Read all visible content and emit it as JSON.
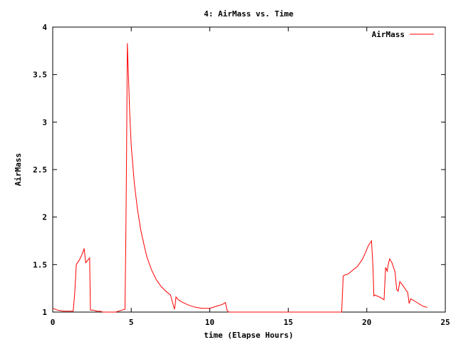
{
  "chart_data": {
    "type": "line",
    "title": "4: AirMass vs. Time",
    "xlabel": "time (Elapse Hours)",
    "ylabel": "AirMass",
    "xlim": [
      0,
      25
    ],
    "ylim": [
      1,
      4
    ],
    "xticks": [
      0,
      5,
      10,
      15,
      20,
      25
    ],
    "yticks": [
      1,
      1.5,
      2,
      2.5,
      3,
      3.5,
      4
    ],
    "xtick_labels": [
      "0",
      "5",
      "10",
      "15",
      "20",
      "25"
    ],
    "ytick_labels": [
      "1",
      "1.5",
      "2",
      "2.5",
      "3",
      "3.5",
      "4"
    ],
    "grid": false,
    "legend_position": "top-right",
    "series": [
      {
        "name": "AirMass",
        "color": "#ff0000",
        "x": [
          0.0,
          0.3,
          0.7,
          1.0,
          1.3,
          1.4,
          1.5,
          1.7,
          1.9,
          2.0,
          2.1,
          2.3,
          2.35,
          2.4,
          2.6,
          2.8,
          3.0,
          3.2,
          3.5,
          4.0,
          4.4,
          4.6,
          4.65,
          4.7,
          4.75,
          4.8,
          4.9,
          5.0,
          5.2,
          5.4,
          5.6,
          5.8,
          6.0,
          6.3,
          6.6,
          6.9,
          7.2,
          7.5,
          7.75,
          7.8,
          7.85,
          8.0,
          8.3,
          8.7,
          9.1,
          9.5,
          10.0,
          10.4,
          10.8,
          11.0,
          11.05,
          11.1,
          11.2,
          18.4,
          18.5,
          18.6,
          18.8,
          19.1,
          19.4,
          19.7,
          19.9,
          20.1,
          20.3,
          20.4,
          20.45,
          20.5,
          20.8,
          21.0,
          21.1,
          21.15,
          21.2,
          21.3,
          21.35,
          21.45,
          21.6,
          21.8,
          21.9,
          22.0,
          22.1,
          22.3,
          22.5,
          22.6,
          22.7,
          22.8,
          23.0,
          23.3,
          23.6,
          23.85
        ],
        "values": [
          1.04,
          1.02,
          1.01,
          1.01,
          1.01,
          1.2,
          1.5,
          1.55,
          1.62,
          1.67,
          1.52,
          1.56,
          1.57,
          1.02,
          1.02,
          1.01,
          1.01,
          1.0,
          1.0,
          1.0,
          1.02,
          1.03,
          1.7,
          2.6,
          3.83,
          3.6,
          3.1,
          2.75,
          2.35,
          2.08,
          1.87,
          1.72,
          1.58,
          1.44,
          1.34,
          1.27,
          1.22,
          1.18,
          1.03,
          1.08,
          1.16,
          1.13,
          1.1,
          1.07,
          1.05,
          1.04,
          1.04,
          1.06,
          1.08,
          1.1,
          1.06,
          1.02,
          1.0,
          1.0,
          1.38,
          1.39,
          1.4,
          1.44,
          1.48,
          1.55,
          1.62,
          1.7,
          1.75,
          1.45,
          1.17,
          1.18,
          1.16,
          1.14,
          1.13,
          1.3,
          1.47,
          1.43,
          1.49,
          1.56,
          1.52,
          1.42,
          1.24,
          1.22,
          1.32,
          1.28,
          1.23,
          1.21,
          1.09,
          1.14,
          1.12,
          1.09,
          1.06,
          1.05
        ]
      }
    ]
  }
}
